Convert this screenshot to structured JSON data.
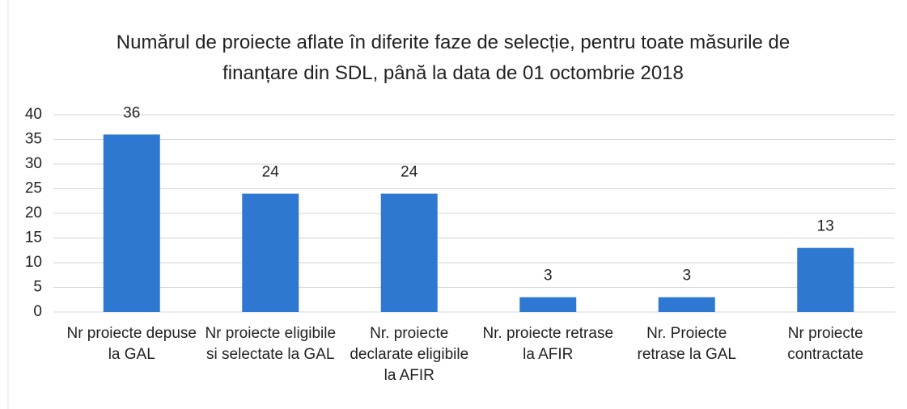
{
  "chart_data": {
    "type": "bar",
    "title": "Numărul de proiecte aflate în diferite faze de selecție, pentru toate măsurile de finanțare din SDL, până la data de 01 octombrie 2018",
    "categories": [
      "Nr proiecte depuse la GAL",
      "Nr proiecte eligibile si selectate la GAL",
      "Nr. proiecte declarate eligibile la AFIR",
      "Nr. proiecte retrase la AFIR",
      "Nr. Proiecte retrase la GAL",
      "Nr proiecte contractate"
    ],
    "values": [
      36,
      24,
      24,
      3,
      3,
      13
    ],
    "color": "#2e78d2",
    "ylim": [
      0,
      40
    ],
    "yticks": [
      0,
      5,
      10,
      15,
      20,
      25,
      30,
      35,
      40
    ],
    "grid": true
  }
}
